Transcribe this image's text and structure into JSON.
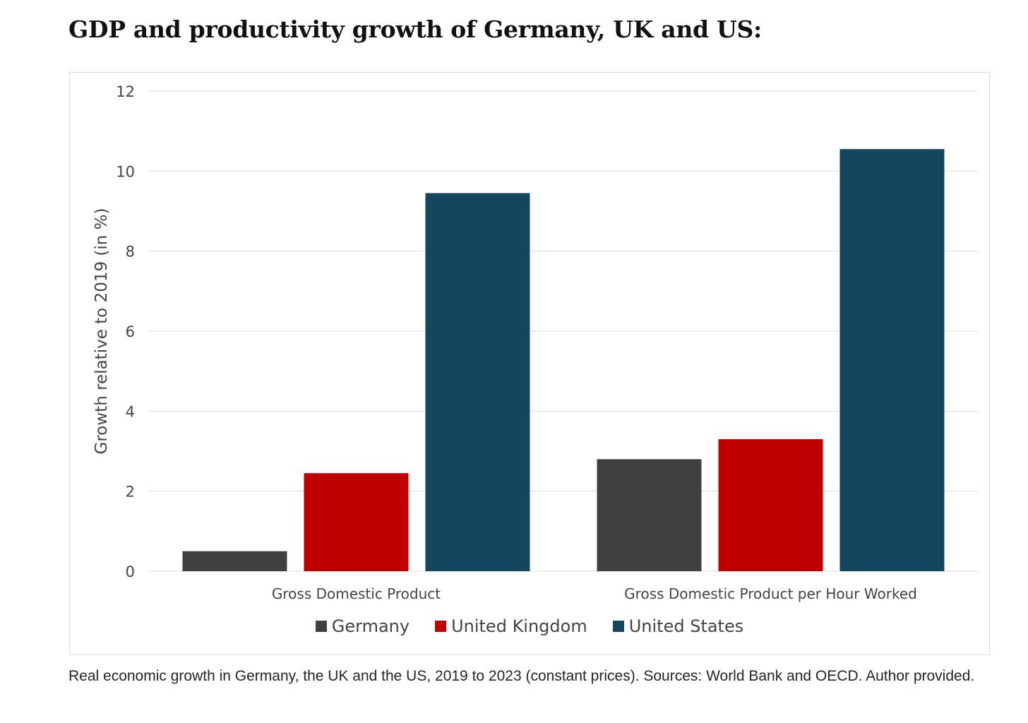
{
  "page": {
    "title": "GDP and productivity growth of Germany, UK and US:",
    "caption": "Real economic growth in Germany, the UK and the US, 2019 to 2023 (constant prices). Sources: World Bank and OECD. Author provided."
  },
  "chart_data": {
    "type": "bar",
    "categories": [
      "Gross Domestic Product",
      "Gross Domestic Product per Hour Worked"
    ],
    "series": [
      {
        "name": "Germany",
        "color": "#404040",
        "values": [
          0.5,
          2.8
        ]
      },
      {
        "name": "United Kingdom",
        "color": "#c00000",
        "values": [
          2.45,
          3.3
        ]
      },
      {
        "name": "United States",
        "color": "#154660",
        "values": [
          9.45,
          10.55
        ]
      }
    ],
    "title": "",
    "xlabel": "",
    "ylabel": "Growth relative to 2019 (in %)",
    "ylim": [
      0,
      12
    ],
    "yticks": [
      "0",
      "2",
      "4",
      "6",
      "8",
      "10",
      "12"
    ],
    "grid": true,
    "legend_position": "bottom"
  }
}
